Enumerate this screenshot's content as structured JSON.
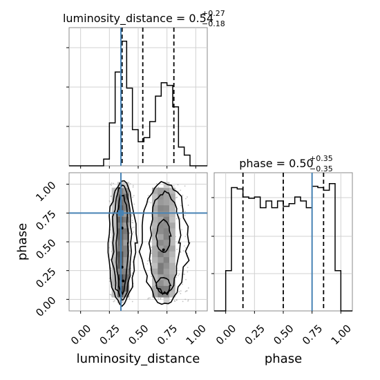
{
  "chart_data": [
    {
      "type": "histogram",
      "panel": "top-left",
      "title": {
        "base": "luminosity_distance = 0.54",
        "sup": "+0.27",
        "sub": "−0.18"
      },
      "xlim": [
        -0.1,
        1.1
      ],
      "bin_edges": [
        -0.1,
        0.1,
        0.2,
        0.25,
        0.3,
        0.35,
        0.4,
        0.45,
        0.5,
        0.55,
        0.6,
        0.65,
        0.7,
        0.75,
        0.8,
        0.85,
        0.9,
        0.95,
        1.0,
        1.1
      ],
      "counts": [
        0,
        0,
        0.05,
        0.32,
        0.7,
        0.93,
        0.58,
        0.27,
        0.18,
        0.21,
        0.33,
        0.52,
        0.62,
        0.6,
        0.44,
        0.14,
        0.08,
        0,
        0
      ],
      "quantiles": [
        0.36,
        0.54,
        0.81
      ],
      "truth": 0.35,
      "grid": true
    },
    {
      "type": "histogram",
      "panel": "bottom-right",
      "title": {
        "base": "phase = 0.50",
        "sup": "+0.35",
        "sub": "−0.35"
      },
      "xlabel": "phase",
      "xlim": [
        -0.1,
        1.1
      ],
      "xticks": [
        "0.00",
        "0.25",
        "0.50",
        "0.75",
        "1.00"
      ],
      "bin_edges": [
        -0.1,
        0.0,
        0.05,
        0.1,
        0.15,
        0.2,
        0.25,
        0.3,
        0.35,
        0.4,
        0.45,
        0.5,
        0.55,
        0.6,
        0.65,
        0.7,
        0.75,
        0.8,
        0.85,
        0.9,
        0.95,
        1.0,
        1.05,
        1.1
      ],
      "counts": [
        0,
        0.3,
        0.92,
        0.91,
        0.85,
        0.84,
        0.85,
        0.77,
        0.82,
        0.77,
        0.82,
        0.78,
        0.8,
        0.85,
        0.82,
        0.77,
        0.93,
        0.92,
        0.9,
        0.95,
        0.3,
        0,
        0
      ],
      "quantiles": [
        0.15,
        0.5,
        0.85
      ],
      "truth": 0.75,
      "grid": true
    },
    {
      "type": "2d-density",
      "panel": "bottom-left",
      "xlabel": "luminosity_distance",
      "ylabel": "phase",
      "xlim": [
        -0.1,
        1.1
      ],
      "ylim": [
        -0.1,
        1.1
      ],
      "xticks": [
        "0.00",
        "0.25",
        "0.50",
        "0.75",
        "1.00"
      ],
      "yticks": [
        "0.00",
        "0.25",
        "0.50",
        "0.75",
        "1.00"
      ],
      "truth": [
        0.35,
        0.75
      ],
      "grid": true
    }
  ],
  "colors": {
    "truth": "#4682b4",
    "density": "#555555",
    "scatter": "#a9a9a9"
  }
}
